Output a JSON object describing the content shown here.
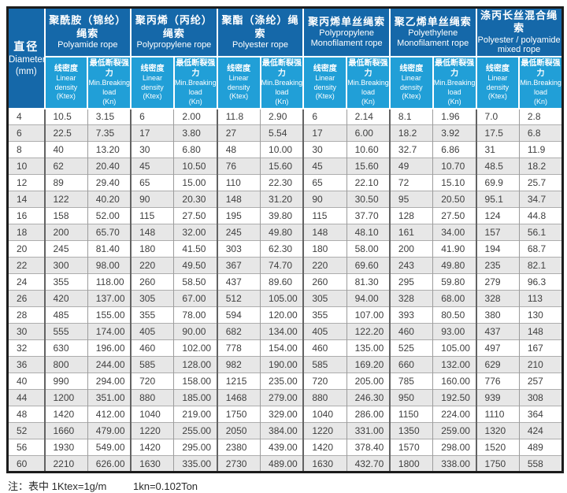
{
  "colors": {
    "header_dark": "#1568a9",
    "header_light": "#219fd7",
    "row_alt": "#e7e7e7",
    "border_dark": "#1c1c1c"
  },
  "table": {
    "diameter": {
      "zh": "直径",
      "en": "Diameter",
      "unit": "(mm)"
    },
    "groups": [
      {
        "zh": "聚酰胺（锦纶）绳索",
        "en": "Polyamide rope"
      },
      {
        "zh": "聚丙烯（丙纶）绳索",
        "en": "Polypropylene rope"
      },
      {
        "zh": "聚酯（涤纶）绳索",
        "en": "Polyester rope"
      },
      {
        "zh": "聚丙烯单丝绳索",
        "en": "Polypropylene Monofilament rope"
      },
      {
        "zh": "聚乙烯单丝绳索",
        "en": "Polyethylene Monofilament rope"
      },
      {
        "zh": "涤丙长丝混合绳索",
        "en": "Polyester / polyamide mixed rope"
      }
    ],
    "sub_density": {
      "zh": "线密度",
      "en": "Linear density",
      "unit": "(Ktex)"
    },
    "sub_load": {
      "zh": "最低断裂强力",
      "en1": "Min.Breaking",
      "en2": "load",
      "unit": "(Kn)"
    },
    "rows": [
      [
        "4",
        "10.5",
        "3.15",
        "6",
        "2.00",
        "11.8",
        "2.90",
        "6",
        "2.14",
        "8.1",
        "1.96",
        "7.0",
        "2.8"
      ],
      [
        "6",
        "22.5",
        "7.35",
        "17",
        "3.80",
        "27",
        "5.54",
        "17",
        "6.00",
        "18.2",
        "3.92",
        "17.5",
        "6.8"
      ],
      [
        "8",
        "40",
        "13.20",
        "30",
        "6.80",
        "48",
        "10.00",
        "30",
        "10.60",
        "32.7",
        "6.86",
        "31",
        "11.9"
      ],
      [
        "10",
        "62",
        "20.40",
        "45",
        "10.50",
        "76",
        "15.60",
        "45",
        "15.60",
        "49",
        "10.70",
        "48.5",
        "18.2"
      ],
      [
        "12",
        "89",
        "29.40",
        "65",
        "15.00",
        "110",
        "22.30",
        "65",
        "22.10",
        "72",
        "15.10",
        "69.9",
        "25.7"
      ],
      [
        "14",
        "122",
        "40.20",
        "90",
        "20.30",
        "148",
        "31.20",
        "90",
        "30.50",
        "95",
        "20.50",
        "95.1",
        "34.7"
      ],
      [
        "16",
        "158",
        "52.00",
        "115",
        "27.50",
        "195",
        "39.80",
        "115",
        "37.70",
        "128",
        "27.50",
        "124",
        "44.8"
      ],
      [
        "18",
        "200",
        "65.70",
        "148",
        "32.00",
        "245",
        "49.80",
        "148",
        "48.10",
        "161",
        "34.00",
        "157",
        "56.1"
      ],
      [
        "20",
        "245",
        "81.40",
        "180",
        "41.50",
        "303",
        "62.30",
        "180",
        "58.00",
        "200",
        "41.90",
        "194",
        "68.7"
      ],
      [
        "22",
        "300",
        "98.00",
        "220",
        "49.50",
        "367",
        "74.70",
        "220",
        "69.60",
        "243",
        "49.80",
        "235",
        "82.1"
      ],
      [
        "24",
        "355",
        "118.00",
        "260",
        "58.50",
        "437",
        "89.60",
        "260",
        "81.30",
        "295",
        "59.80",
        "279",
        "96.3"
      ],
      [
        "26",
        "420",
        "137.00",
        "305",
        "67.00",
        "512",
        "105.00",
        "305",
        "94.00",
        "328",
        "68.00",
        "328",
        "113"
      ],
      [
        "28",
        "485",
        "155.00",
        "355",
        "78.00",
        "594",
        "120.00",
        "355",
        "107.00",
        "393",
        "80.50",
        "380",
        "130"
      ],
      [
        "30",
        "555",
        "174.00",
        "405",
        "90.00",
        "682",
        "134.00",
        "405",
        "122.20",
        "460",
        "93.00",
        "437",
        "148"
      ],
      [
        "32",
        "630",
        "196.00",
        "460",
        "102.00",
        "778",
        "154.00",
        "460",
        "135.00",
        "525",
        "105.00",
        "497",
        "167"
      ],
      [
        "36",
        "800",
        "244.00",
        "585",
        "128.00",
        "982",
        "190.00",
        "585",
        "169.20",
        "660",
        "132.00",
        "629",
        "210"
      ],
      [
        "40",
        "990",
        "294.00",
        "720",
        "158.00",
        "1215",
        "235.00",
        "720",
        "205.00",
        "785",
        "160.00",
        "776",
        "257"
      ],
      [
        "44",
        "1200",
        "351.00",
        "880",
        "185.00",
        "1468",
        "279.00",
        "880",
        "246.30",
        "950",
        "192.50",
        "939",
        "308"
      ],
      [
        "48",
        "1420",
        "412.00",
        "1040",
        "219.00",
        "1750",
        "329.00",
        "1040",
        "286.00",
        "1150",
        "224.00",
        "1110",
        "364"
      ],
      [
        "52",
        "1660",
        "479.00",
        "1220",
        "255.00",
        "2050",
        "384.00",
        "1220",
        "331.00",
        "1350",
        "259.00",
        "1320",
        "424"
      ],
      [
        "56",
        "1930",
        "549.00",
        "1420",
        "295.00",
        "2380",
        "439.00",
        "1420",
        "378.40",
        "1570",
        "298.00",
        "1520",
        "489"
      ],
      [
        "60",
        "2210",
        "626.00",
        "1630",
        "335.00",
        "2730",
        "489.00",
        "1630",
        "432.70",
        "1800",
        "338.00",
        "1750",
        "558"
      ]
    ]
  },
  "footer": {
    "note_prefix": "注：表中 1Ktex=1g/m",
    "note_conversion": "1kn=0.102Ton"
  }
}
